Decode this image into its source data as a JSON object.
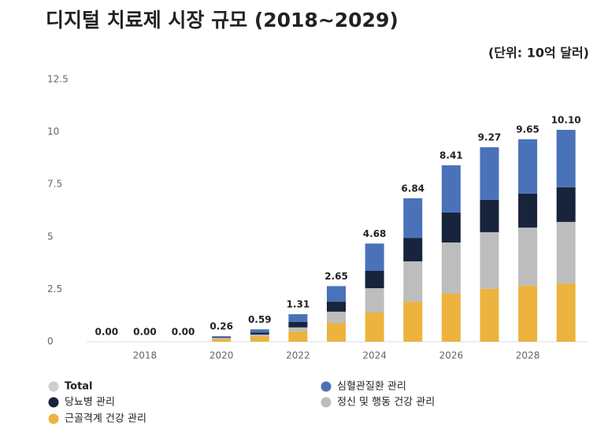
{
  "chart_data": {
    "type": "stacked_bar",
    "title": "디지털 치료제 시장 규모 (2018~2029)",
    "subtitle": "(단위: 10억 달러)",
    "categories": [
      null,
      "2018",
      null,
      "2020",
      null,
      "2022",
      null,
      "2024",
      null,
      "2026",
      null,
      "2028",
      null
    ],
    "series": [
      {
        "name": "근골격계 건강 관리",
        "color": "#ecb33f",
        "values": [
          0,
          0,
          0,
          0.14,
          0.26,
          0.49,
          0.9,
          1.39,
          1.91,
          2.29,
          2.52,
          2.67,
          2.78
        ]
      },
      {
        "name": "정신 및 행동 건강 관리",
        "color": "#bdbdbd",
        "values": [
          0,
          0,
          0,
          0.04,
          0.08,
          0.19,
          0.53,
          1.16,
          1.92,
          2.44,
          2.7,
          2.77,
          2.93
        ]
      },
      {
        "name": "당뇨병 관리",
        "color": "#17243b",
        "values": [
          0,
          0,
          0,
          0.03,
          0.1,
          0.26,
          0.48,
          0.83,
          1.12,
          1.43,
          1.54,
          1.62,
          1.65
        ]
      },
      {
        "name": "심혈관질환 관리",
        "color": "#4a72b8",
        "values": [
          0,
          0,
          0,
          0.05,
          0.15,
          0.37,
          0.74,
          1.3,
          1.89,
          2.25,
          2.51,
          2.59,
          2.74
        ]
      }
    ],
    "total": {
      "name": "Total",
      "color": "#cfcfcf",
      "values": [
        0,
        0,
        0,
        0.26,
        0.59,
        1.31,
        2.65,
        4.68,
        6.84,
        8.41,
        9.27,
        9.65,
        10.1
      ],
      "value_labels": [
        "0.00",
        "0.00",
        "0.00",
        "0.26",
        "0.59",
        "1.31",
        "2.65",
        "4.68",
        "6.84",
        "8.41",
        "9.27",
        "9.65",
        "10.10"
      ]
    },
    "ylim": [
      0,
      12.5
    ],
    "yticks": [
      0,
      2.5,
      5,
      7.5,
      10,
      12.5
    ],
    "grid": false
  }
}
